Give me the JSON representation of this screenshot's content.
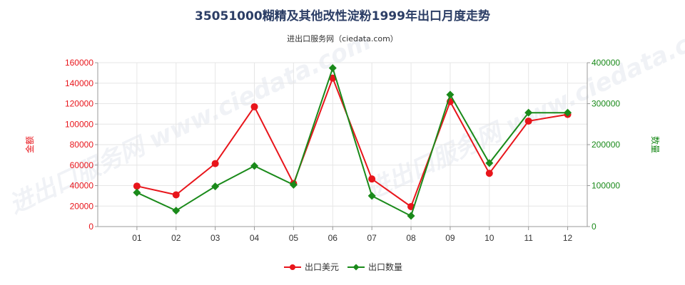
{
  "chart_data": {
    "type": "line",
    "title": "35051000糊精及其他改性淀粉1999年出口月度走势",
    "subtitle": "进出口服务网（ciedata.com）",
    "categories": [
      "01",
      "02",
      "03",
      "04",
      "05",
      "06",
      "07",
      "08",
      "09",
      "10",
      "11",
      "12"
    ],
    "y_left": {
      "label": "金额",
      "ylim": [
        0,
        160000
      ],
      "ticks": [
        "0",
        "20000",
        "40000",
        "60000",
        "80000",
        "100000",
        "120000",
        "140000",
        "160000"
      ],
      "color": "#e8151b"
    },
    "y_right": {
      "label": "数量",
      "ylim": [
        0,
        400000
      ],
      "ticks": [
        "0",
        "100000",
        "200000",
        "300000",
        "400000"
      ],
      "color": "#1a8a1a"
    },
    "series": [
      {
        "name": "出口美元",
        "axis": "left",
        "color": "#e8151b",
        "values": [
          39500,
          31000,
          61500,
          117000,
          42000,
          145000,
          46500,
          19500,
          122000,
          52000,
          103000,
          109500
        ]
      },
      {
        "name": "出口数量",
        "axis": "right",
        "color": "#1a8a1a",
        "values": [
          83000,
          39000,
          98000,
          148000,
          102000,
          387000,
          75000,
          26000,
          322000,
          155000,
          278000,
          278000
        ]
      }
    ],
    "grid": true,
    "legend": "bottom-center"
  },
  "watermark": "进出口服务网 www.ciedata.com"
}
